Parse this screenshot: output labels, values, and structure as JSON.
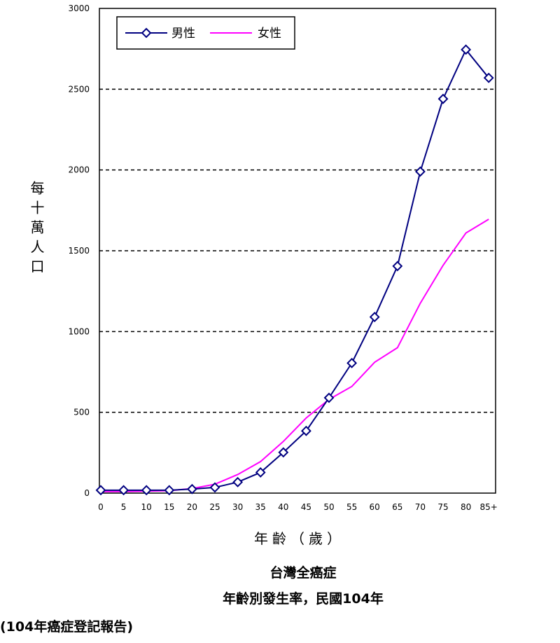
{
  "chart_data": {
    "type": "line",
    "x": [
      "0",
      "5",
      "10",
      "15",
      "20",
      "25",
      "30",
      "35",
      "40",
      "45",
      "50",
      "55",
      "60",
      "65",
      "70",
      "75",
      "80",
      "85+"
    ],
    "series": [
      {
        "name": "男性",
        "color": "#000080",
        "marker": "diamond",
        "values": [
          18,
          18,
          18,
          18,
          25,
          35,
          68,
          128,
          252,
          385,
          590,
          805,
          1090,
          1405,
          1990,
          2440,
          2745,
          2570
        ]
      },
      {
        "name": "女性",
        "color": "#ff00ff",
        "marker": "none",
        "values": [
          10,
          10,
          12,
          15,
          28,
          55,
          115,
          195,
          320,
          465,
          580,
          660,
          810,
          900,
          1175,
          1410,
          1610,
          1695
        ]
      }
    ],
    "ylim": [
      0,
      3000
    ],
    "yticks": [
      0,
      500,
      1000,
      1500,
      2000,
      2500,
      3000
    ],
    "ylabel": "每十萬人口",
    "xlabel": "年齡（歲）",
    "grid": "horizontal dashed",
    "legend_position": "top-left"
  },
  "captions": {
    "line1": "台灣全癌症",
    "line2": "年齡別發生率，民國104年",
    "source": "(104年癌症登記報告)"
  }
}
